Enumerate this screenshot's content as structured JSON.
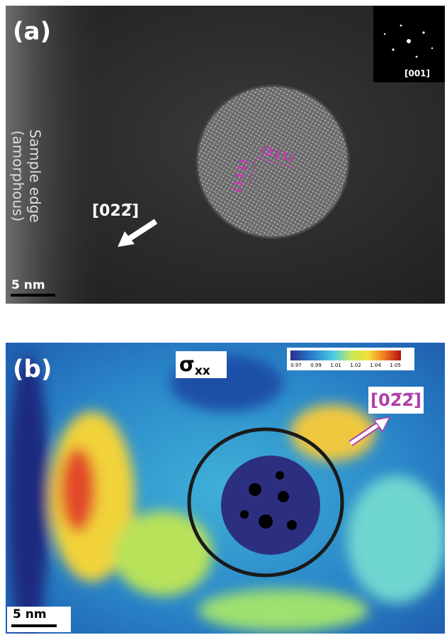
{
  "panel_a": {
    "label": "(a)",
    "inset_label": "[001]",
    "edge_label_1": "Sample edge",
    "edge_label_2": "(amorphous)",
    "direction": "[022̅]",
    "plane_1": "(311)",
    "plane_2": "(111)",
    "scale_bar": "5 nm"
  },
  "panel_b": {
    "label": "(b)",
    "quantity": "σ",
    "quantity_subscript": "xx",
    "direction": "[02̅2̅]",
    "scale_bar": "5 nm",
    "colorbar": {
      "ticks": [
        "0.97",
        "0.99",
        "1.01",
        "1.02",
        "1.04",
        "1.05"
      ]
    }
  }
}
